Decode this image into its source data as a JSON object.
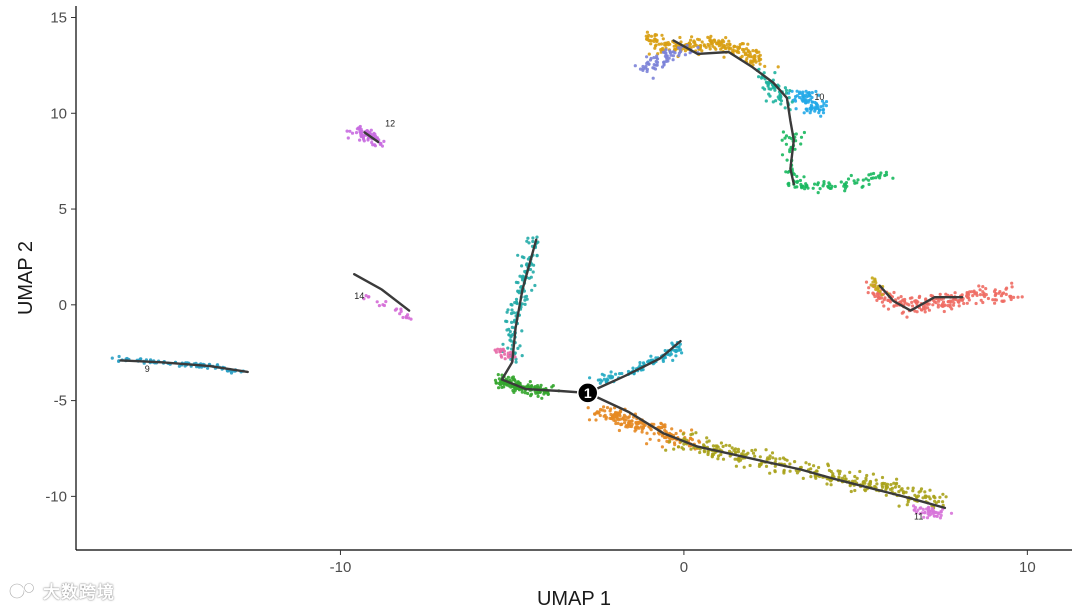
{
  "chart_data": {
    "type": "scatter",
    "title": "",
    "xlabel": "UMAP 1",
    "ylabel": "UMAP 2",
    "xlim": [
      -17.7,
      11.3
    ],
    "ylim": [
      -12.8,
      15.6
    ],
    "x_ticks": [
      -10,
      0,
      10
    ],
    "y_ticks": [
      -10,
      -5,
      0,
      5,
      10,
      15
    ],
    "grid": false,
    "legend": "none",
    "clusters": [
      {
        "id": "orange-tan",
        "color": "#D89E12",
        "path": [
          [
            -1.0,
            13.9
          ],
          [
            -0.2,
            13.4
          ],
          [
            0.8,
            13.7
          ],
          [
            1.8,
            13.2
          ],
          [
            2.2,
            12.6
          ]
        ],
        "spread": 0.35,
        "n": 220
      },
      {
        "id": "slate-blue",
        "color": "#7C83D8",
        "path": [
          [
            -1.2,
            12.4
          ],
          [
            -0.5,
            12.9
          ],
          [
            0.2,
            13.2
          ]
        ],
        "spread": 0.35,
        "n": 70
      },
      {
        "id": "10",
        "label": "10",
        "color": "#22A8E8",
        "path": [
          [
            3.3,
            11.1
          ],
          [
            3.7,
            10.6
          ],
          [
            3.9,
            10.1
          ]
        ],
        "spread": 0.35,
        "n": 80
      },
      {
        "id": "teal-top",
        "color": "#1FB39E",
        "path": [
          [
            2.2,
            12.2
          ],
          [
            2.7,
            11.2
          ],
          [
            3.0,
            10.4
          ]
        ],
        "spread": 0.3,
        "n": 60
      },
      {
        "id": "green-top",
        "color": "#18B85E",
        "path": [
          [
            3.2,
            8.8
          ],
          [
            3.1,
            7.3
          ],
          [
            3.2,
            6.2
          ],
          [
            4.5,
            6.2
          ],
          [
            6.0,
            6.8
          ]
        ],
        "spread": 0.25,
        "n": 110
      },
      {
        "id": "12",
        "label": "12",
        "color": "#C86BE0",
        "path": [
          [
            -9.5,
            9.1
          ],
          [
            -9.0,
            8.6
          ],
          [
            -8.8,
            8.4
          ]
        ],
        "spread": 0.28,
        "n": 60
      },
      {
        "id": "14",
        "label": "14",
        "color": "#D46AD6",
        "path": [
          [
            -9.4,
            0.5
          ],
          [
            -8.4,
            -0.2
          ],
          [
            -8.0,
            -0.8
          ]
        ],
        "spread": 0.12,
        "n": 20
      },
      {
        "id": "9",
        "label": "9",
        "color": "#2A9EC4",
        "path": [
          [
            -16.6,
            -2.8
          ],
          [
            -15.2,
            -3.0
          ],
          [
            -13.8,
            -3.2
          ],
          [
            -12.8,
            -3.5
          ]
        ],
        "spread": 0.12,
        "n": 90
      },
      {
        "id": "teal-arm",
        "color": "#23ABA8",
        "path": [
          [
            -4.3,
            3.6
          ],
          [
            -4.7,
            1.0
          ],
          [
            -5.0,
            -1.2
          ],
          [
            -4.9,
            -3.0
          ]
        ],
        "spread": 0.22,
        "n": 140
      },
      {
        "id": "pink-small",
        "color": "#E768A6",
        "path": [
          [
            -5.3,
            -2.3
          ],
          [
            -5.0,
            -2.8
          ]
        ],
        "spread": 0.2,
        "n": 25
      },
      {
        "id": "green-elbow",
        "color": "#33A52C",
        "path": [
          [
            -5.4,
            -3.9
          ],
          [
            -4.7,
            -4.3
          ],
          [
            -3.9,
            -4.6
          ]
        ],
        "spread": 0.28,
        "n": 140
      },
      {
        "id": "cyan-arm",
        "color": "#20A9C2",
        "path": [
          [
            -2.6,
            -4.1
          ],
          [
            -1.4,
            -3.4
          ],
          [
            -0.3,
            -2.4
          ],
          [
            -0.2,
            -1.9
          ]
        ],
        "spread": 0.22,
        "n": 100
      },
      {
        "id": "orange-long",
        "color": "#E68A24",
        "path": [
          [
            -2.5,
            -5.5
          ],
          [
            -1.2,
            -6.3
          ],
          [
            0.2,
            -7.3
          ]
        ],
        "spread": 0.4,
        "n": 200
      },
      {
        "id": "olive-long",
        "color": "#A8A21A",
        "path": [
          [
            0.0,
            -7.2
          ],
          [
            2.0,
            -8.0
          ],
          [
            4.0,
            -8.8
          ],
          [
            6.0,
            -9.6
          ],
          [
            7.5,
            -10.4
          ]
        ],
        "spread": 0.45,
        "n": 320
      },
      {
        "id": "11",
        "label": "11",
        "color": "#D774D9",
        "path": [
          [
            6.8,
            -10.7
          ],
          [
            7.5,
            -10.9
          ]
        ],
        "spread": 0.22,
        "n": 45
      },
      {
        "id": "salmon",
        "color": "#EE6B63",
        "path": [
          [
            5.6,
            0.6
          ],
          [
            6.8,
            -0.1
          ],
          [
            8.4,
            0.5
          ],
          [
            9.5,
            0.6
          ]
        ],
        "spread": 0.45,
        "n": 220
      },
      {
        "id": "yellow-small",
        "color": "#C5A81A",
        "path": [
          [
            5.5,
            1.4
          ],
          [
            5.8,
            0.5
          ]
        ],
        "spread": 0.15,
        "n": 20
      }
    ],
    "trajectory": [
      [
        [
          -0.3,
          13.8
        ],
        [
          0.4,
          13.1
        ],
        [
          1.3,
          13.2
        ],
        [
          2.0,
          12.4
        ],
        [
          2.6,
          11.6
        ],
        [
          3.0,
          10.8
        ],
        [
          3.1,
          9.6
        ],
        [
          3.2,
          8.6
        ],
        [
          3.1,
          7.1
        ],
        [
          3.2,
          6.3
        ]
      ],
      [
        [
          -2.8,
          -4.6
        ],
        [
          -3.6,
          -4.5
        ],
        [
          -4.6,
          -4.4
        ],
        [
          -5.3,
          -3.9
        ],
        [
          -5.0,
          -3.0
        ],
        [
          -4.9,
          -1.2
        ],
        [
          -4.7,
          0.8
        ],
        [
          -4.3,
          3.4
        ]
      ],
      [
        [
          -2.8,
          -4.6
        ],
        [
          -1.7,
          -3.7
        ],
        [
          -0.7,
          -2.8
        ],
        [
          -0.1,
          -1.9
        ]
      ],
      [
        [
          -2.8,
          -4.6
        ],
        [
          -1.6,
          -5.6
        ],
        [
          -0.6,
          -6.7
        ],
        [
          0.4,
          -7.4
        ],
        [
          1.4,
          -7.8
        ],
        [
          2.4,
          -8.2
        ],
        [
          3.4,
          -8.6
        ],
        [
          4.4,
          -9.1
        ],
        [
          5.5,
          -9.6
        ],
        [
          6.6,
          -10.1
        ],
        [
          7.6,
          -10.6
        ]
      ],
      [
        [
          -16.4,
          -2.9
        ],
        [
          -15.2,
          -3.0
        ],
        [
          -13.8,
          -3.2
        ],
        [
          -12.7,
          -3.5
        ]
      ],
      [
        [
          -9.6,
          1.6
        ],
        [
          -8.8,
          0.8
        ],
        [
          -8.0,
          -0.3
        ]
      ],
      [
        [
          5.7,
          1.0
        ],
        [
          6.1,
          0.2
        ],
        [
          6.6,
          -0.3
        ],
        [
          7.3,
          0.4
        ],
        [
          8.1,
          0.4
        ]
      ],
      [
        [
          -9.3,
          9.0
        ],
        [
          -8.9,
          8.5
        ]
      ]
    ],
    "annotations": [
      {
        "text": "10",
        "x": 3.8,
        "y": 10.7
      },
      {
        "text": "12",
        "x": -8.7,
        "y": 9.3
      },
      {
        "text": "14",
        "x": -9.6,
        "y": 0.3
      },
      {
        "text": "9",
        "x": -15.7,
        "y": -3.5
      },
      {
        "text": "11",
        "x": 6.7,
        "y": -11.2
      }
    ],
    "root_node": {
      "label": "1",
      "x": -2.8,
      "y": -4.6
    }
  },
  "watermark": {
    "text": "大数跨境"
  }
}
